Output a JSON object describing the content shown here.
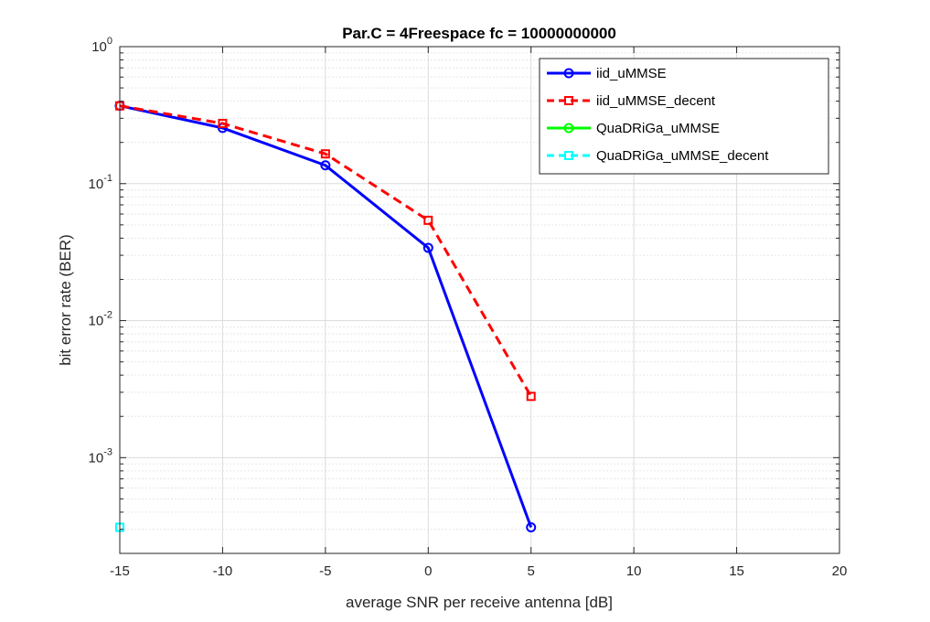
{
  "chart_data": {
    "type": "line",
    "title": "Par.C = 4Freespace fc = 10000000000",
    "xlabel": "average SNR per receive antenna [dB]",
    "ylabel": "bit error rate (BER)",
    "xlim": [
      -15,
      20
    ],
    "ylim": [
      0.0002,
      1
    ],
    "yscale": "log",
    "grid": true,
    "minor_grid": true,
    "legend_position": "top-right",
    "x_ticks": [
      -15,
      -10,
      -5,
      0,
      5,
      10,
      15,
      20
    ],
    "x_tick_labels": [
      "-15",
      "-10",
      "-5",
      "0",
      "5",
      "10",
      "15",
      "20"
    ],
    "y_ticks": [
      {
        "value": 1,
        "base": "10",
        "exp": "0"
      },
      {
        "value": 0.1,
        "base": "10",
        "exp": "-1"
      },
      {
        "value": 0.01,
        "base": "10",
        "exp": "-2"
      },
      {
        "value": 0.001,
        "base": "10",
        "exp": "-3"
      }
    ],
    "series": [
      {
        "name": "iid_uMMSE",
        "color": "#0000ff",
        "dash": "solid",
        "marker": "circle",
        "x": [
          -15,
          -10,
          -5,
          0,
          5
        ],
        "y": [
          0.37,
          0.255,
          0.136,
          0.034,
          0.00031
        ]
      },
      {
        "name": "iid_uMMSE_decent",
        "color": "#ff0000",
        "dash": "dashed",
        "marker": "square",
        "x": [
          -15,
          -10,
          -5,
          0,
          5
        ],
        "y": [
          0.37,
          0.275,
          0.165,
          0.054,
          0.0028
        ]
      },
      {
        "name": "QuaDRiGa_uMMSE",
        "color": "#00ff00",
        "dash": "solid",
        "marker": "circle",
        "x": [],
        "y": []
      },
      {
        "name": "QuaDRiGa_uMMSE_decent",
        "color": "#00ffff",
        "dash": "dashed",
        "marker": "square",
        "x": [
          -15
        ],
        "y": [
          0.00031
        ]
      }
    ]
  }
}
